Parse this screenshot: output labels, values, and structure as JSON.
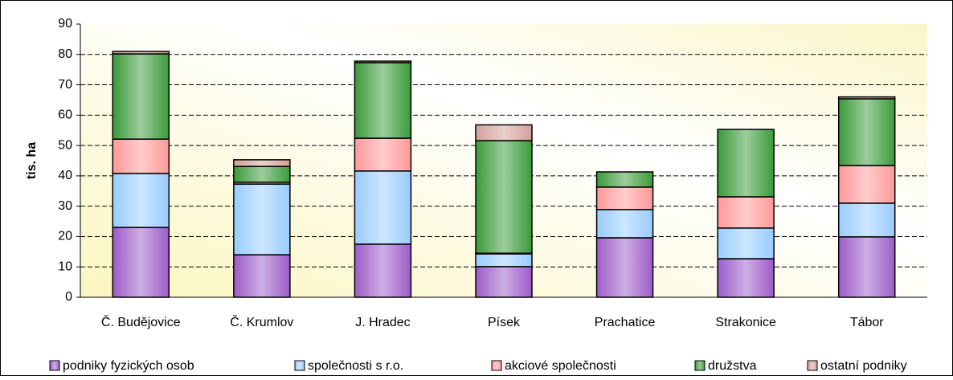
{
  "chart_data": {
    "type": "stacked_bar",
    "y_label": "tis. ha",
    "categories": [
      "Č. Budějovice",
      "Č. Krumlov",
      "J. Hradec",
      "Písek",
      "Prachatice",
      "Strakonice",
      "Tábor"
    ],
    "series": [
      {
        "name": "podniky fyzických osob",
        "color": "#9c5cc8",
        "values": [
          23.0,
          14.0,
          17.5,
          10.1,
          19.6,
          12.7,
          19.9
        ]
      },
      {
        "name": "společnosti s r.o.",
        "color": "#99ccff",
        "values": [
          17.8,
          23.3,
          24.1,
          4.2,
          9.3,
          10.1,
          11.1
        ]
      },
      {
        "name": "akciové společnosti",
        "color": "#ff9999",
        "values": [
          11.3,
          0.6,
          10.8,
          0.2,
          7.4,
          10.3,
          12.4
        ]
      },
      {
        "name": "družstva",
        "color": "#3a9a3a",
        "values": [
          28.1,
          5.2,
          24.9,
          37.1,
          5.0,
          22.2,
          22.0
        ]
      },
      {
        "name": "ostatní podniky",
        "color": "#d4a09a",
        "values": [
          0.8,
          2.2,
          0.5,
          5.2,
          0,
          0,
          0.6
        ]
      }
    ],
    "ylim": [
      0,
      90
    ],
    "yticks": [
      0,
      10,
      20,
      30,
      40,
      50,
      60,
      70,
      80,
      90
    ],
    "grid": true,
    "legend": "bottom"
  }
}
